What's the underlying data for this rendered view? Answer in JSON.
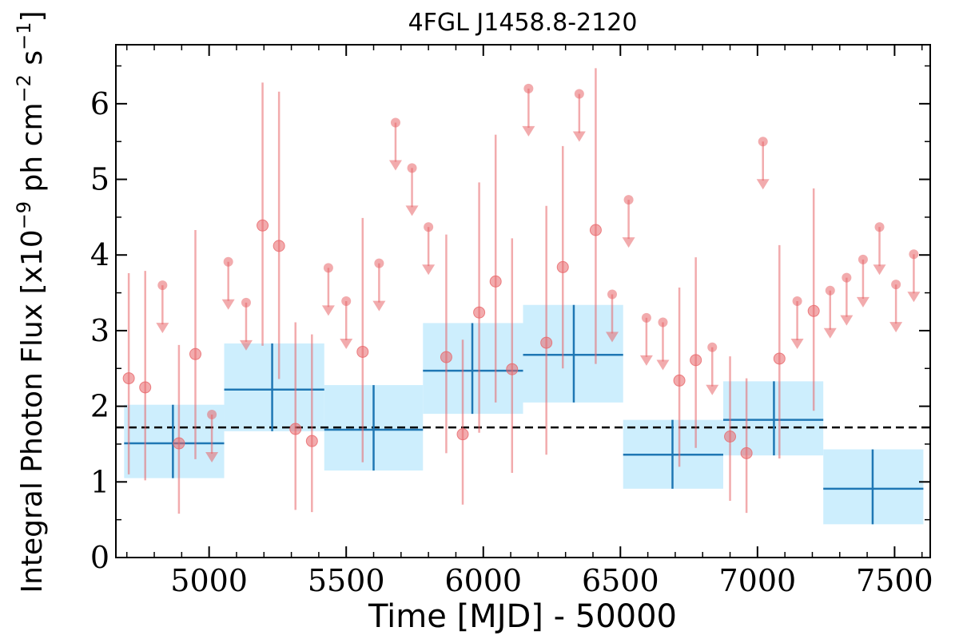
{
  "chart_data": {
    "type": "scatter",
    "title": "4FGL J1458.8-2120",
    "xlabel": "Time [MJD] - 50000",
    "ylabel": "Integral Photon Flux [x10",
    "ylabel_exp1": "−9",
    "ylabel_mid": " ph cm",
    "ylabel_exp2": "−2",
    "ylabel_mid2": " s",
    "ylabel_exp3": "−1",
    "ylabel_end": "]",
    "xlim": [
      4660,
      7630
    ],
    "ylim": [
      0,
      6.78
    ],
    "xticks": [
      5000,
      5500,
      6000,
      6500,
      7000,
      7500
    ],
    "xtick_labels": [
      "5000",
      "5500",
      "6000",
      "6500",
      "7000",
      "7500"
    ],
    "yticks": [
      0,
      1,
      2,
      3,
      4,
      5,
      6
    ],
    "ytick_labels": [
      "0",
      "1",
      "2",
      "3",
      "4",
      "5",
      "6"
    ],
    "grid": false,
    "colors": {
      "points": "#e8666a",
      "points_alpha": 0.55,
      "bins_line": "#1f77b4",
      "bins_fill": "#cdeefd",
      "average_line": "#000000"
    },
    "average_flux": 1.72,
    "measurements": [
      {
        "x": 4707,
        "y": 2.37,
        "err_low": 1.1,
        "err_high": 3.76
      },
      {
        "x": 4767,
        "y": 2.25,
        "err_low": 1.02,
        "err_high": 3.79
      },
      {
        "x": 4890,
        "y": 1.51,
        "err_low": 0.58,
        "err_high": 2.81
      },
      {
        "x": 4950,
        "y": 2.69,
        "err_low": 1.3,
        "err_high": 4.33
      },
      {
        "x": 5195,
        "y": 4.39,
        "err_low": 2.8,
        "err_high": 6.28
      },
      {
        "x": 5255,
        "y": 4.12,
        "err_low": 2.36,
        "err_high": 6.16
      },
      {
        "x": 5315,
        "y": 1.7,
        "err_low": 0.63,
        "err_high": 3.11
      },
      {
        "x": 5375,
        "y": 1.54,
        "err_low": 0.6,
        "err_high": 2.95
      },
      {
        "x": 5560,
        "y": 2.72,
        "err_low": 1.26,
        "err_high": 4.49
      },
      {
        "x": 5865,
        "y": 2.65,
        "err_low": 1.38,
        "err_high": 4.27
      },
      {
        "x": 5925,
        "y": 1.63,
        "err_low": 0.7,
        "err_high": 2.88
      },
      {
        "x": 5985,
        "y": 3.24,
        "err_low": 1.65,
        "err_high": 4.96
      },
      {
        "x": 6045,
        "y": 3.65,
        "err_low": 2.05,
        "err_high": 5.59
      },
      {
        "x": 6105,
        "y": 2.49,
        "err_low": 1.12,
        "err_high": 4.22
      },
      {
        "x": 6230,
        "y": 2.84,
        "err_low": 1.36,
        "err_high": 4.65
      },
      {
        "x": 6290,
        "y": 3.84,
        "err_low": 2.5,
        "err_high": 5.44
      },
      {
        "x": 6410,
        "y": 4.33,
        "err_low": 2.56,
        "err_high": 6.47
      },
      {
        "x": 6715,
        "y": 2.34,
        "err_low": 1.2,
        "err_high": 3.57
      },
      {
        "x": 6775,
        "y": 2.61,
        "err_low": 1.45,
        "err_high": 3.97
      },
      {
        "x": 6900,
        "y": 1.6,
        "err_low": 0.75,
        "err_high": 2.66
      },
      {
        "x": 6960,
        "y": 1.38,
        "err_low": 0.59,
        "err_high": 2.37
      },
      {
        "x": 7080,
        "y": 2.63,
        "err_low": 1.31,
        "err_high": 4.13
      },
      {
        "x": 7205,
        "y": 3.26,
        "err_low": 1.94,
        "err_high": 4.88
      }
    ],
    "upper_limits": [
      {
        "x": 4830,
        "y": 3.6
      },
      {
        "x": 5010,
        "y": 1.89
      },
      {
        "x": 5070,
        "y": 3.91
      },
      {
        "x": 5135,
        "y": 3.37
      },
      {
        "x": 5435,
        "y": 3.83
      },
      {
        "x": 5500,
        "y": 3.39
      },
      {
        "x": 5620,
        "y": 3.89
      },
      {
        "x": 5680,
        "y": 5.75
      },
      {
        "x": 5740,
        "y": 5.15
      },
      {
        "x": 5800,
        "y": 4.37
      },
      {
        "x": 6165,
        "y": 6.2
      },
      {
        "x": 6350,
        "y": 6.13
      },
      {
        "x": 6470,
        "y": 3.48
      },
      {
        "x": 6530,
        "y": 4.73
      },
      {
        "x": 6595,
        "y": 3.17
      },
      {
        "x": 6655,
        "y": 3.11
      },
      {
        "x": 6835,
        "y": 2.78
      },
      {
        "x": 7020,
        "y": 5.5
      },
      {
        "x": 7145,
        "y": 3.39
      },
      {
        "x": 7265,
        "y": 3.53
      },
      {
        "x": 7325,
        "y": 3.7
      },
      {
        "x": 7385,
        "y": 3.94
      },
      {
        "x": 7445,
        "y": 4.37
      },
      {
        "x": 7505,
        "y": 3.61
      },
      {
        "x": 7570,
        "y": 4.01
      }
    ],
    "bins": [
      {
        "x0": 4690,
        "x1": 5055,
        "xc": 4868,
        "y": 1.51,
        "y_low": 1.05,
        "y_high": 2.02
      },
      {
        "x0": 5055,
        "x1": 5420,
        "xc": 5230,
        "y": 2.22,
        "y_low": 1.67,
        "y_high": 2.83
      },
      {
        "x0": 5420,
        "x1": 5780,
        "xc": 5600,
        "y": 1.69,
        "y_low": 1.15,
        "y_high": 2.28
      },
      {
        "x0": 5780,
        "x1": 6145,
        "xc": 5960,
        "y": 2.47,
        "y_low": 1.9,
        "y_high": 3.1
      },
      {
        "x0": 6145,
        "x1": 6510,
        "xc": 6330,
        "y": 2.68,
        "y_low": 2.05,
        "y_high": 3.34
      },
      {
        "x0": 6510,
        "x1": 6875,
        "xc": 6690,
        "y": 1.36,
        "y_low": 0.91,
        "y_high": 1.82
      },
      {
        "x0": 6875,
        "x1": 7240,
        "xc": 7060,
        "y": 1.82,
        "y_low": 1.35,
        "y_high": 2.33
      },
      {
        "x0": 7240,
        "x1": 7605,
        "xc": 7420,
        "y": 0.91,
        "y_low": 0.44,
        "y_high": 1.43
      }
    ]
  }
}
